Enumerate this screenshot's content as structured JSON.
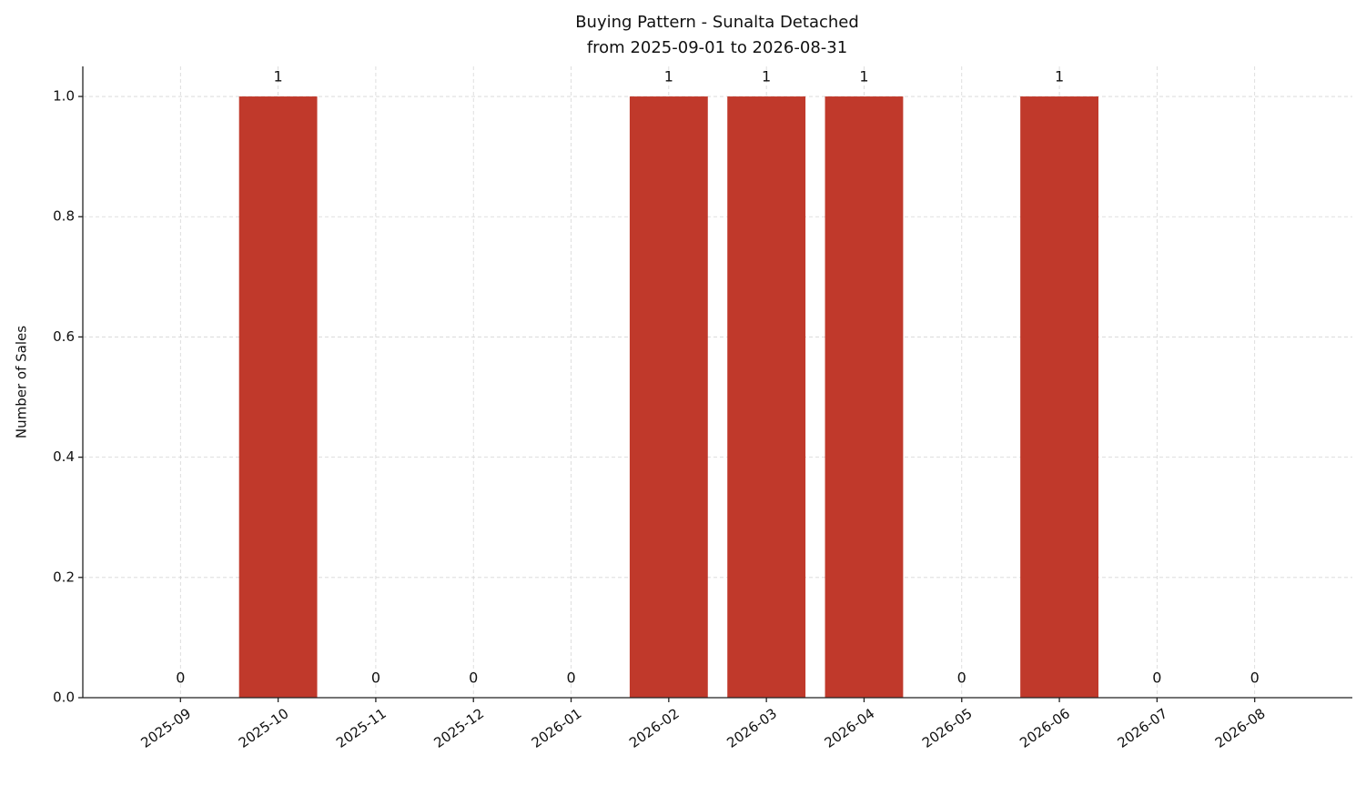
{
  "chart_data": {
    "type": "bar",
    "title": "Buying Pattern - Sunalta Detached",
    "subtitle": "from 2025-09-01 to 2026-08-31",
    "y_label": "Number of Sales",
    "categories": [
      "2025-09",
      "2025-10",
      "2025-11",
      "2025-12",
      "2026-01",
      "2026-02",
      "2026-03",
      "2026-04",
      "2026-05",
      "2026-06",
      "2026-07",
      "2026-08"
    ],
    "values": [
      0,
      1,
      0,
      0,
      0,
      1,
      1,
      1,
      0,
      1,
      0,
      0
    ],
    "color": "#c0392b",
    "ylim": [
      0,
      1.05
    ],
    "yticks": [
      {
        "value": 0,
        "label": "0.0"
      },
      0.2,
      0.4,
      0.6,
      0.8,
      {
        "value": 1,
        "label": "1.0"
      }
    ],
    "grid": true
  }
}
